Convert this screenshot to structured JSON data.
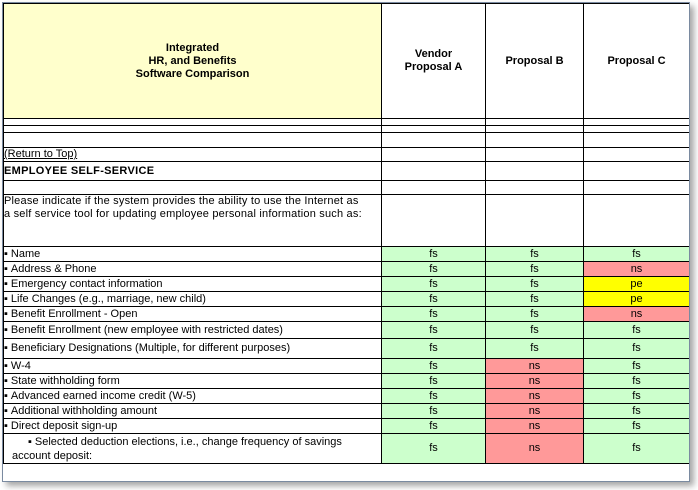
{
  "header": {
    "title_line1": "Integrated",
    "title_line2": "HR, and Benefits",
    "title_line3": "Software  Comparison",
    "col_a_line1": "Vendor",
    "col_a_line2": "Proposal A",
    "col_b": "Proposal B",
    "col_c": "Proposal C"
  },
  "return_link": "(Return to Top)",
  "section_title": "EMPLOYEE SELF-SERVICE",
  "instruction_line1": "Please indicate if the system provides the ability to use the Internet as",
  "instruction_line2": "a self service tool for updating employee personal information such as:",
  "colors": {
    "fs": "#ccffcc",
    "ns": "#ff9999",
    "pe": "#ffff00",
    "header_fill": "#ffffcc",
    "link": "#0000cc"
  },
  "rows": [
    {
      "label": "Name",
      "a": "fs",
      "b": "fs",
      "c": "fs"
    },
    {
      "label": "Address & Phone",
      "a": "fs",
      "b": "fs",
      "c": "ns"
    },
    {
      "label": "Emergency contact information",
      "a": "fs",
      "b": "fs",
      "c": "pe"
    },
    {
      "label": "Life Changes (e.g., marriage, new child)",
      "a": "fs",
      "b": "fs",
      "c": "pe"
    },
    {
      "label": "Benefit Enrollment - Open",
      "a": "fs",
      "b": "fs",
      "c": "ns"
    },
    {
      "label": "Benefit Enrollment (new employee with restricted dates)",
      "a": "fs",
      "b": "fs",
      "c": "fs"
    },
    {
      "label": "Beneficiary Designations (Multiple, for different purposes)",
      "a": "fs",
      "b": "fs",
      "c": "fs"
    },
    {
      "label": "W-4",
      "a": "fs",
      "b": "ns",
      "c": "fs"
    },
    {
      "label": "State withholding form",
      "a": "fs",
      "b": "ns",
      "c": "fs"
    },
    {
      "label": "Advanced earned income credit (W-5)",
      "a": "fs",
      "b": "ns",
      "c": "fs"
    },
    {
      "label": "Additional withholding amount",
      "a": "fs",
      "b": "ns",
      "c": "fs"
    },
    {
      "label": "Direct deposit sign-up",
      "a": "fs",
      "b": "ns",
      "c": "fs"
    },
    {
      "label_line1": "Selected deduction elections, i.e., change frequency of savings",
      "label_line2": "account deposit:",
      "a": "fs",
      "b": "ns",
      "c": "fs"
    }
  ]
}
